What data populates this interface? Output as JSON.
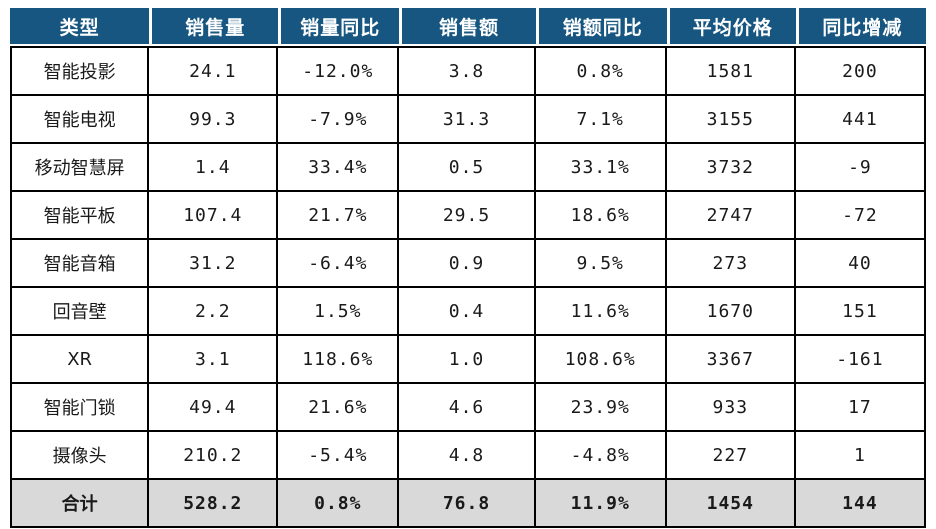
{
  "colors": {
    "header_bg": "#165680",
    "header_text": "#FFFFFF",
    "increase_red": "#FB0000",
    "decrease_green": "#27BE69",
    "total_row_bg": "#D9D9D9",
    "body_text": "#1A1A1A",
    "border": "#000000"
  },
  "chart_data": {
    "type": "table",
    "title": "",
    "columns": [
      "类型",
      "销售量",
      "销量同比",
      "销售额",
      "销额同比",
      "平均价格",
      "同比增减"
    ],
    "rows": [
      {
        "is_total": false,
        "cells": [
          "智能投影",
          "24.1",
          "-12.0%",
          "3.8",
          "0.8%",
          "1581",
          "200"
        ],
        "cell_colors": [
          "black",
          "black",
          "green",
          "black",
          "red",
          "black",
          "red"
        ]
      },
      {
        "is_total": false,
        "cells": [
          "智能电视",
          "99.3",
          "-7.9%",
          "31.3",
          "7.1%",
          "3155",
          "441"
        ],
        "cell_colors": [
          "black",
          "black",
          "green",
          "black",
          "red",
          "black",
          "red"
        ]
      },
      {
        "is_total": false,
        "cells": [
          "移动智慧屏",
          "1.4",
          "33.4%",
          "0.5",
          "33.1%",
          "3732",
          "-9"
        ],
        "cell_colors": [
          "black",
          "black",
          "red",
          "black",
          "red",
          "black",
          "green"
        ]
      },
      {
        "is_total": false,
        "cells": [
          "智能平板",
          "107.4",
          "21.7%",
          "29.5",
          "18.6%",
          "2747",
          "-72"
        ],
        "cell_colors": [
          "black",
          "black",
          "red",
          "black",
          "red",
          "black",
          "green"
        ]
      },
      {
        "is_total": false,
        "cells": [
          "智能音箱",
          "31.2",
          "-6.4%",
          "0.9",
          "9.5%",
          "273",
          "40"
        ],
        "cell_colors": [
          "black",
          "black",
          "green",
          "black",
          "red",
          "black",
          "red"
        ]
      },
      {
        "is_total": false,
        "cells": [
          "回音壁",
          "2.2",
          "1.5%",
          "0.4",
          "11.6%",
          "1670",
          "151"
        ],
        "cell_colors": [
          "black",
          "black",
          "red",
          "black",
          "red",
          "black",
          "red"
        ]
      },
      {
        "is_total": false,
        "cells": [
          "XR",
          "3.1",
          "118.6%",
          "1.0",
          "108.6%",
          "3367",
          "-161"
        ],
        "cell_colors": [
          "black",
          "black",
          "red",
          "black",
          "red",
          "black",
          "green"
        ]
      },
      {
        "is_total": false,
        "cells": [
          "智能门锁",
          "49.4",
          "21.6%",
          "4.6",
          "23.9%",
          "933",
          "17"
        ],
        "cell_colors": [
          "black",
          "black",
          "red",
          "black",
          "red",
          "black",
          "red"
        ]
      },
      {
        "is_total": false,
        "cells": [
          "摄像头",
          "210.2",
          "-5.4%",
          "4.8",
          "-4.8%",
          "227",
          "1"
        ],
        "cell_colors": [
          "black",
          "black",
          "green",
          "black",
          "green",
          "black",
          "red"
        ]
      },
      {
        "is_total": true,
        "cells": [
          "合计",
          "528.2",
          "0.8%",
          "76.8",
          "11.9%",
          "1454",
          "144"
        ],
        "cell_colors": [
          "black",
          "black",
          "red",
          "black",
          "red",
          "black",
          "red"
        ]
      }
    ]
  }
}
